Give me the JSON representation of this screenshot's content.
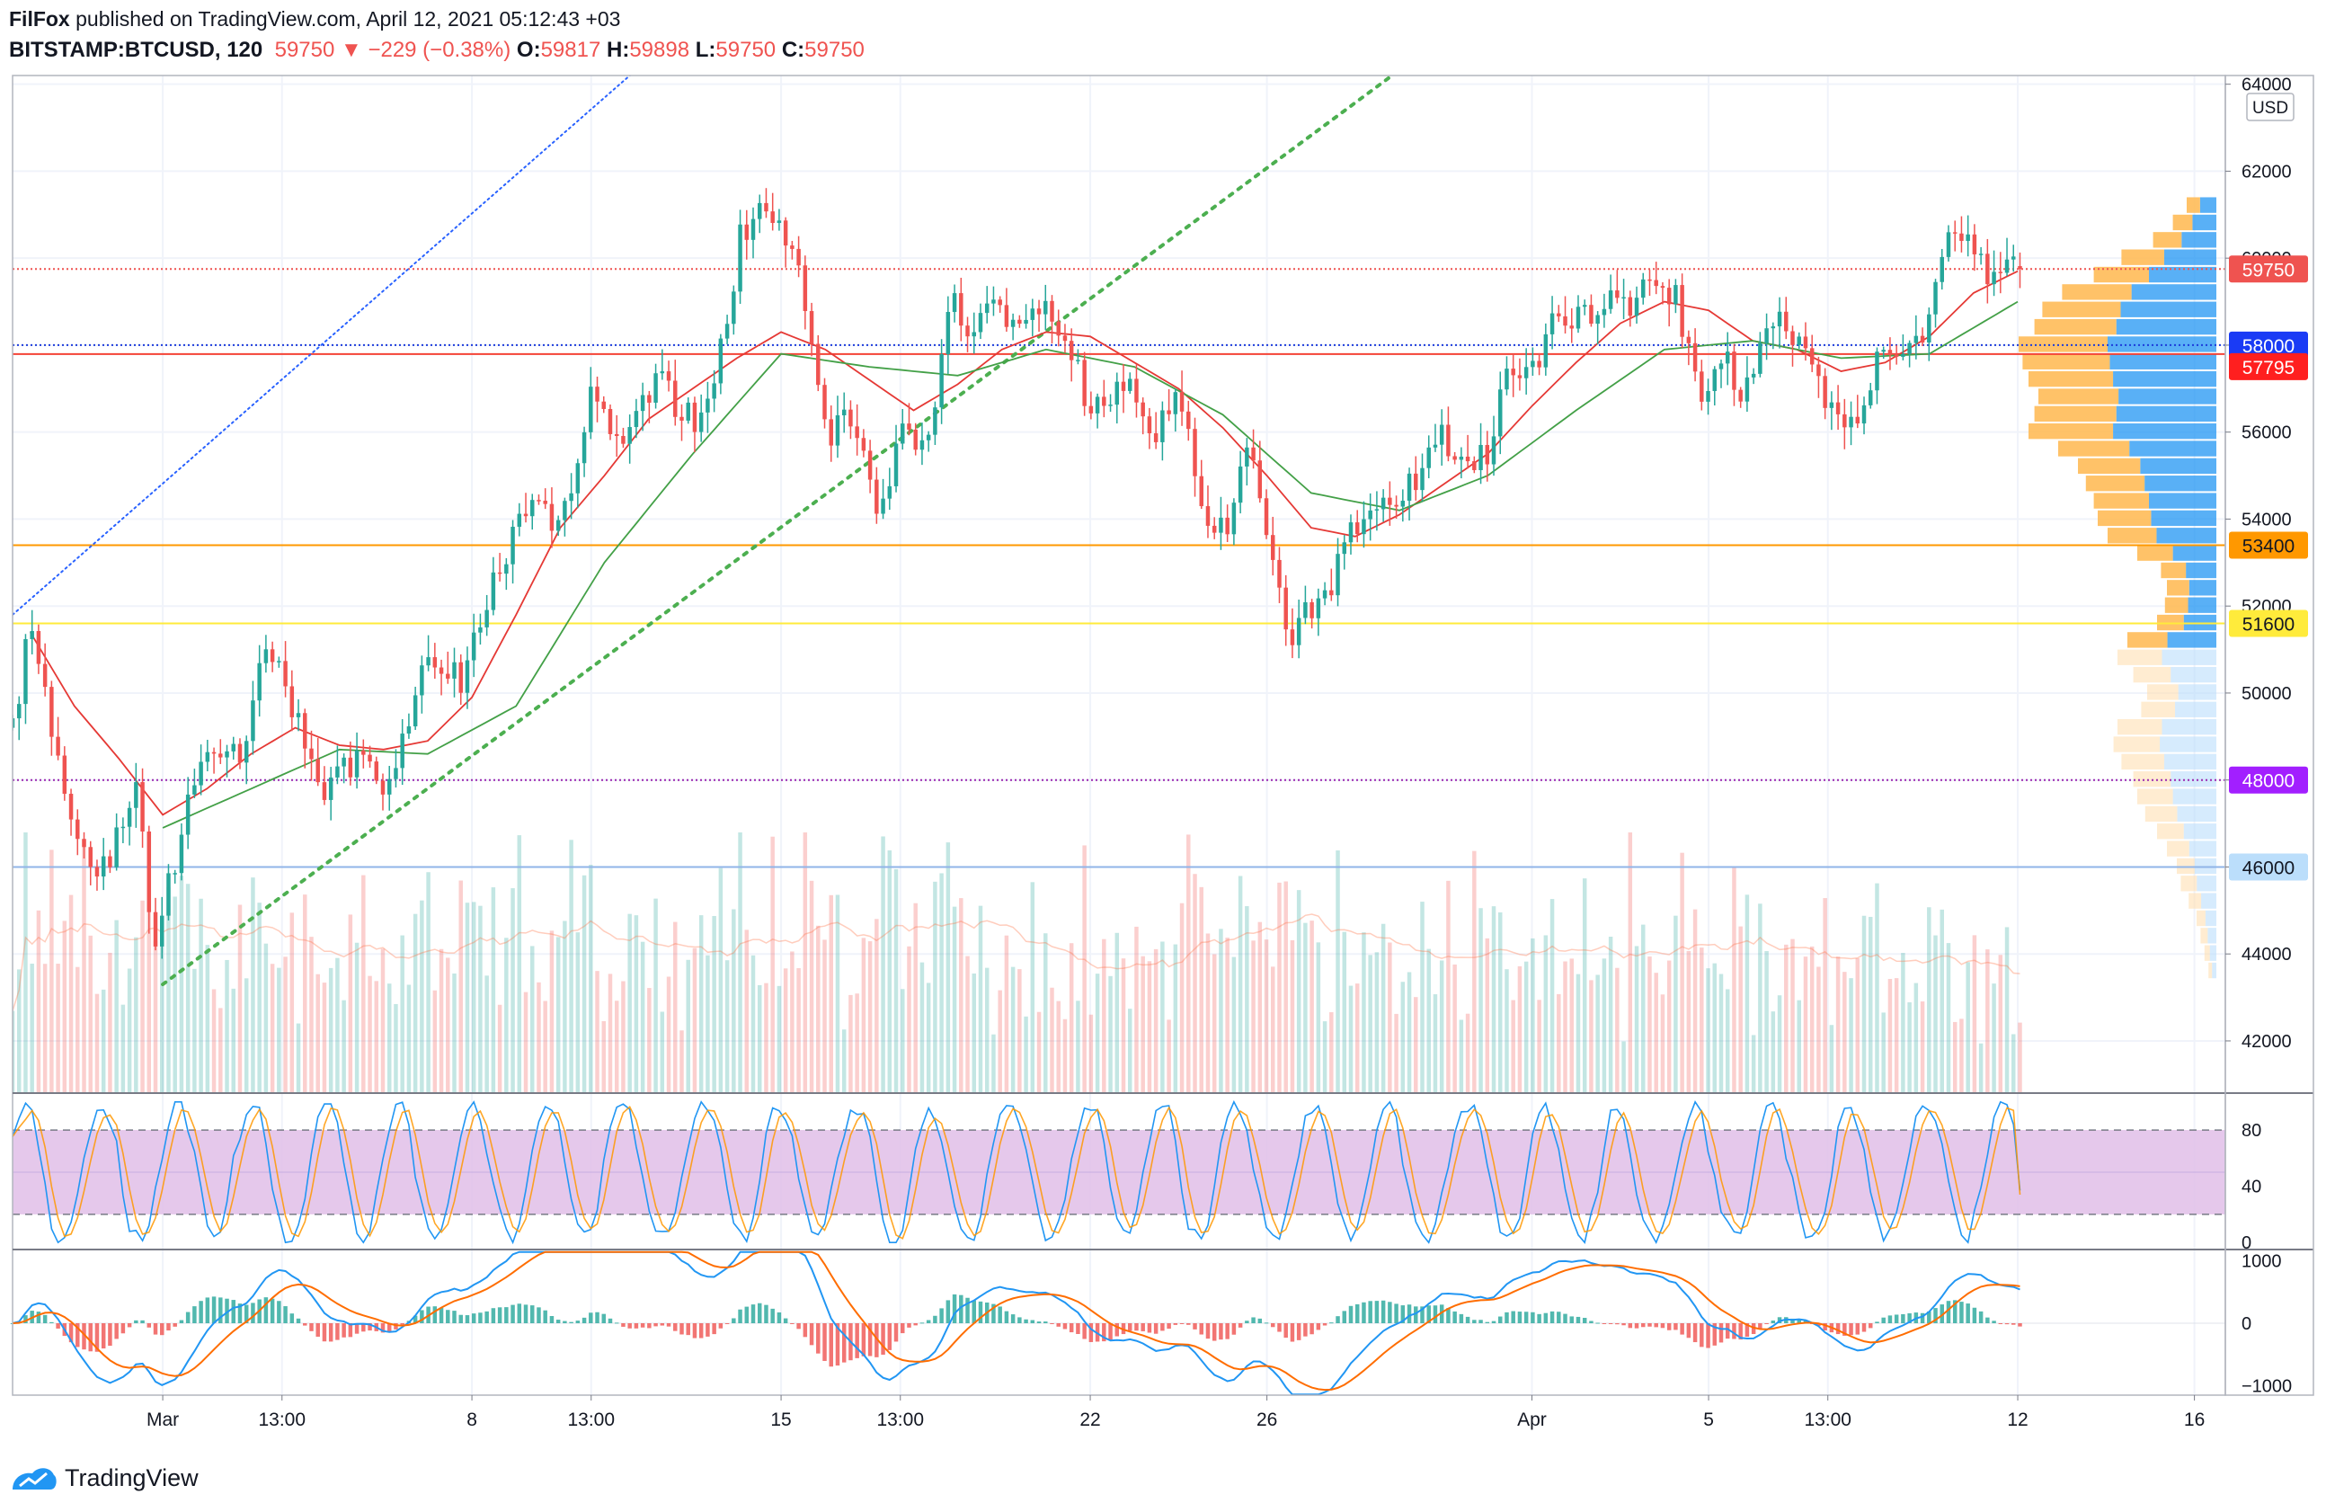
{
  "header": {
    "publisher": "FilFox",
    "published_text": "published on TradingView.com, April 12, 2021 05:12:43 +03",
    "symbol": "BITSTAMP:BTCUSD, 120",
    "last": "59750",
    "arrow": "▼",
    "change": "−229 (−0.38%)",
    "o_label": "O:",
    "o": "59817",
    "h_label": "H:",
    "h": "59898",
    "l_label": "L:",
    "l": "59750",
    "c_label": "C:",
    "c": "59750"
  },
  "brand": {
    "name": "TradingView",
    "logo_icon": "tradingview-logo-icon"
  },
  "chart_data": {
    "type": "candlestick",
    "currency": "USD",
    "y_ticks": [
      "64000",
      "62000",
      "60000",
      "58000",
      "56000",
      "54000",
      "52000",
      "50000",
      "48000",
      "46000",
      "44000",
      "42000"
    ],
    "ylim": [
      40800,
      64200
    ],
    "x_ticks": [
      "Mar",
      "13:00",
      "8",
      "13:00",
      "15",
      "13:00",
      "22",
      "26",
      "Apr",
      "5",
      "13:00",
      "12",
      "16"
    ],
    "x_tick_days": [
      0,
      2.7,
      7,
      9.7,
      14,
      16.7,
      21,
      25,
      31,
      35,
      37.7,
      42,
      46
    ],
    "x_range_days": [
      -3.4,
      46.7
    ],
    "last_day": 42.05,
    "key_points": [
      [
        -3.4,
        49200
      ],
      [
        -3.0,
        51500
      ],
      [
        -2.2,
        47500
      ],
      [
        -1.5,
        45500
      ],
      [
        -0.6,
        47800
      ],
      [
        -0.2,
        44200
      ],
      [
        0.3,
        46300
      ],
      [
        0.9,
        48800
      ],
      [
        1.8,
        48600
      ],
      [
        2.3,
        51300
      ],
      [
        3.0,
        49600
      ],
      [
        3.6,
        47500
      ],
      [
        4.5,
        48700
      ],
      [
        5.0,
        47700
      ],
      [
        6.0,
        50900
      ],
      [
        6.8,
        50200
      ],
      [
        7.4,
        52300
      ],
      [
        8.4,
        54600
      ],
      [
        9.0,
        53800
      ],
      [
        9.7,
        56800
      ],
      [
        10.5,
        55800
      ],
      [
        11.2,
        57200
      ],
      [
        12.0,
        56200
      ],
      [
        12.7,
        58000
      ],
      [
        13.1,
        60600
      ],
      [
        13.6,
        61200
      ],
      [
        14.3,
        60300
      ],
      [
        14.7,
        58100
      ],
      [
        15.1,
        55800
      ],
      [
        15.6,
        56500
      ],
      [
        16.2,
        54200
      ],
      [
        16.8,
        56200
      ],
      [
        17.3,
        55300
      ],
      [
        17.8,
        59200
      ],
      [
        18.2,
        58200
      ],
      [
        18.9,
        59400
      ],
      [
        19.3,
        58100
      ],
      [
        19.9,
        59100
      ],
      [
        20.5,
        58100
      ],
      [
        21.0,
        56500
      ],
      [
        21.8,
        57300
      ],
      [
        22.3,
        55800
      ],
      [
        23.0,
        56700
      ],
      [
        23.6,
        54200
      ],
      [
        24.1,
        53700
      ],
      [
        24.6,
        56100
      ],
      [
        25.1,
        53200
      ],
      [
        25.5,
        51300
      ],
      [
        25.8,
        51700
      ],
      [
        26.3,
        52100
      ],
      [
        26.9,
        53600
      ],
      [
        27.6,
        54300
      ],
      [
        28.3,
        54800
      ],
      [
        28.9,
        56000
      ],
      [
        29.4,
        55500
      ],
      [
        30.0,
        55400
      ],
      [
        30.4,
        57800
      ],
      [
        31.0,
        57300
      ],
      [
        31.5,
        58900
      ],
      [
        32.1,
        58500
      ],
      [
        32.7,
        59200
      ],
      [
        33.2,
        58900
      ],
      [
        33.8,
        59400
      ],
      [
        34.3,
        59000
      ],
      [
        34.8,
        56700
      ],
      [
        35.3,
        57800
      ],
      [
        35.8,
        56900
      ],
      [
        36.4,
        58700
      ],
      [
        36.9,
        58100
      ],
      [
        37.4,
        57300
      ],
      [
        37.9,
        56100
      ],
      [
        38.4,
        56500
      ],
      [
        38.9,
        57800
      ],
      [
        39.4,
        58100
      ],
      [
        39.9,
        57900
      ],
      [
        40.4,
        60800
      ],
      [
        40.9,
        60300
      ],
      [
        41.3,
        59600
      ],
      [
        41.6,
        59900
      ],
      [
        42.05,
        59750
      ]
    ],
    "sma_fast_points": [
      [
        -3.0,
        51400
      ],
      [
        -2.0,
        49700
      ],
      [
        -1.0,
        48500
      ],
      [
        0.0,
        47200
      ],
      [
        1.0,
        47800
      ],
      [
        2.0,
        48600
      ],
      [
        3.0,
        49200
      ],
      [
        4.0,
        48800
      ],
      [
        5.0,
        48700
      ],
      [
        6.0,
        48900
      ],
      [
        7.0,
        49900
      ],
      [
        8.0,
        51800
      ],
      [
        9.0,
        53800
      ],
      [
        10.0,
        55000
      ],
      [
        11.0,
        56300
      ],
      [
        12.0,
        57000
      ],
      [
        13.0,
        57700
      ],
      [
        14.0,
        58300
      ],
      [
        15.0,
        57900
      ],
      [
        16.0,
        57200
      ],
      [
        17.0,
        56500
      ],
      [
        18.0,
        57100
      ],
      [
        19.0,
        57900
      ],
      [
        20.0,
        58300
      ],
      [
        21.0,
        58200
      ],
      [
        22.0,
        57600
      ],
      [
        23.0,
        57000
      ],
      [
        24.0,
        56100
      ],
      [
        25.0,
        55000
      ],
      [
        26.0,
        53800
      ],
      [
        27.0,
        53600
      ],
      [
        28.0,
        54100
      ],
      [
        29.0,
        54800
      ],
      [
        30.0,
        55500
      ],
      [
        31.0,
        56600
      ],
      [
        32.0,
        57600
      ],
      [
        33.0,
        58500
      ],
      [
        34.0,
        59000
      ],
      [
        35.0,
        58800
      ],
      [
        36.0,
        58100
      ],
      [
        37.0,
        57900
      ],
      [
        38.0,
        57400
      ],
      [
        39.0,
        57600
      ],
      [
        40.0,
        58200
      ],
      [
        41.0,
        59200
      ],
      [
        42.0,
        59700
      ]
    ],
    "sma_slow_points": [
      [
        0.0,
        46900
      ],
      [
        2.0,
        47800
      ],
      [
        4.0,
        48700
      ],
      [
        6.0,
        48600
      ],
      [
        8.0,
        49700
      ],
      [
        10.0,
        53000
      ],
      [
        12.0,
        55500
      ],
      [
        14.0,
        57800
      ],
      [
        16.0,
        57500
      ],
      [
        18.0,
        57300
      ],
      [
        20.0,
        57900
      ],
      [
        22.0,
        57500
      ],
      [
        24.0,
        56400
      ],
      [
        26.0,
        54600
      ],
      [
        28.0,
        54200
      ],
      [
        30.0,
        55000
      ],
      [
        32.0,
        56500
      ],
      [
        34.0,
        57900
      ],
      [
        36.0,
        58100
      ],
      [
        38.0,
        57700
      ],
      [
        40.0,
        57800
      ],
      [
        41.0,
        58400
      ],
      [
        42.0,
        59000
      ]
    ],
    "levels": [
      {
        "value": 59750,
        "label": "59750",
        "color": "#ef5350",
        "style": "dotted"
      },
      {
        "value": 58000,
        "label": "58000",
        "color": "#1e3ddb",
        "style": "dotted",
        "tag_color": "#1a3bf5"
      },
      {
        "value": 57795,
        "label": "57795",
        "color": "#f44336",
        "style": "solid",
        "tag_color": "#ff1f1f"
      },
      {
        "value": 53400,
        "label": "53400",
        "color": "#ff9800",
        "style": "solid",
        "tag_color": "#ff9800"
      },
      {
        "value": 51600,
        "label": "51600",
        "color": "#ffeb3b",
        "style": "solid",
        "tag_color": "#ffeb3b"
      },
      {
        "value": 48000,
        "label": "48000",
        "color": "#9c27b0",
        "style": "dotted",
        "tag_color": "#a21fff"
      },
      {
        "value": 46000,
        "label": "46000",
        "color": "#90b4e8",
        "style": "solid",
        "tag_color": "#bbdefb"
      }
    ],
    "trendlines": [
      {
        "from": [
          -3.4,
          51800
        ],
        "to": [
          10.8,
          64400
        ],
        "color": "#2962ff",
        "style": "dotted",
        "width": 2
      },
      {
        "from": [
          0.0,
          43300
        ],
        "to": [
          28.1,
          64400
        ],
        "color": "#4caf50",
        "style": "dotted",
        "width": 4
      }
    ],
    "volume_profile": {
      "row_step": 200,
      "bins": [
        [
          61200,
          0.15
        ],
        [
          60800,
          0.22
        ],
        [
          60400,
          0.32
        ],
        [
          60000,
          0.48
        ],
        [
          59600,
          0.62
        ],
        [
          59200,
          0.78
        ],
        [
          58800,
          0.88
        ],
        [
          58400,
          0.92
        ],
        [
          58000,
          1.0
        ],
        [
          57600,
          0.98
        ],
        [
          57200,
          0.95
        ],
        [
          56800,
          0.9
        ],
        [
          56400,
          0.92
        ],
        [
          56000,
          0.95
        ],
        [
          55600,
          0.8
        ],
        [
          55200,
          0.7
        ],
        [
          54800,
          0.66
        ],
        [
          54400,
          0.62
        ],
        [
          54000,
          0.6
        ],
        [
          53600,
          0.55
        ],
        [
          53200,
          0.4
        ],
        [
          52800,
          0.28
        ],
        [
          52400,
          0.25
        ],
        [
          52000,
          0.26
        ],
        [
          51600,
          0.3
        ],
        [
          51200,
          0.45
        ],
        [
          50800,
          0.5
        ],
        [
          50400,
          0.42
        ],
        [
          50000,
          0.35
        ],
        [
          49600,
          0.38
        ],
        [
          49200,
          0.5
        ],
        [
          48800,
          0.52
        ],
        [
          48400,
          0.48
        ],
        [
          48000,
          0.42
        ],
        [
          47600,
          0.4
        ],
        [
          47200,
          0.36
        ],
        [
          46800,
          0.3
        ],
        [
          46400,
          0.25
        ],
        [
          46000,
          0.2
        ],
        [
          45600,
          0.18
        ],
        [
          45200,
          0.14
        ],
        [
          44800,
          0.1
        ],
        [
          44400,
          0.08
        ],
        [
          44000,
          0.06
        ],
        [
          43600,
          0.04
        ]
      ]
    },
    "stoch_rsi": {
      "y_ticks": [
        "80",
        "40",
        "0"
      ],
      "upper": 80,
      "lower": 20,
      "ylim": [
        -5,
        105
      ],
      "band_color": "#e1bee7"
    },
    "macd": {
      "y_ticks": [
        "1000",
        "0",
        "−1000"
      ],
      "ylim": [
        -1150,
        1150
      ]
    }
  }
}
